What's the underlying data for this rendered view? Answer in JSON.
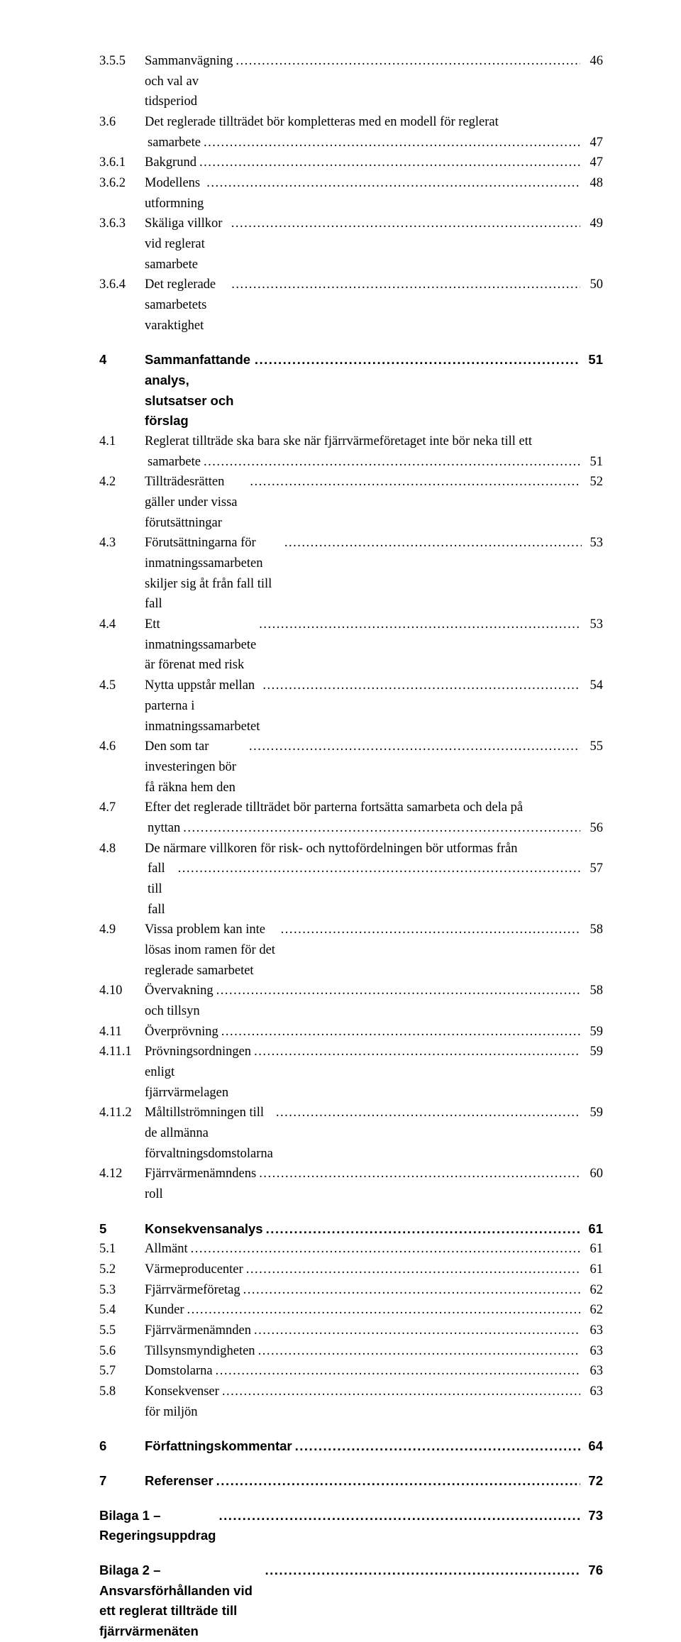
{
  "toc": [
    {
      "num": "3.5.5",
      "title": "Sammanvägning och val av tidsperiod",
      "page": "46",
      "bold": false,
      "indent": false
    },
    {
      "num": "3.6",
      "title": "Det reglerade tillträdet bör kompletteras med en modell för reglerat",
      "page": "",
      "bold": false,
      "indent": false,
      "noleader": true
    },
    {
      "num": "",
      "title": "samarbete",
      "page": "47",
      "bold": false,
      "indent": true
    },
    {
      "num": "3.6.1",
      "title": "Bakgrund",
      "page": "47",
      "bold": false,
      "indent": false
    },
    {
      "num": "3.6.2",
      "title": "Modellens utformning",
      "page": "48",
      "bold": false,
      "indent": false
    },
    {
      "num": "3.6.3",
      "title": "Skäliga villkor vid reglerat samarbete",
      "page": "49",
      "bold": false,
      "indent": false
    },
    {
      "num": "3.6.4",
      "title": "Det reglerade samarbetets varaktighet",
      "page": "50",
      "bold": false,
      "indent": false
    },
    {
      "gap": true
    },
    {
      "num": "4",
      "title": "Sammanfattande analys, slutsatser och förslag",
      "page": "51",
      "bold": true,
      "indent": false,
      "sans": true
    },
    {
      "num": "4.1",
      "title": "Reglerat tillträde ska bara ske när fjärrvärmeföretaget inte bör neka till ett",
      "page": "",
      "bold": false,
      "indent": false,
      "noleader": true
    },
    {
      "num": "",
      "title": "samarbete",
      "page": "51",
      "bold": false,
      "indent": true
    },
    {
      "num": "4.2",
      "title": "Tillträdesrätten gäller under vissa förutsättningar",
      "page": "52",
      "bold": false,
      "indent": false
    },
    {
      "num": "4.3",
      "title": "Förutsättningarna för inmatningssamarbeten skiljer sig åt från fall till fall",
      "page": "53",
      "bold": false,
      "indent": false,
      "tight": true
    },
    {
      "num": "4.4",
      "title": "Ett inmatningssamarbete är förenat med risk",
      "page": "53",
      "bold": false,
      "indent": false
    },
    {
      "num": "4.5",
      "title": "Nytta uppstår mellan parterna i inmatningssamarbetet",
      "page": "54",
      "bold": false,
      "indent": false
    },
    {
      "num": "4.6",
      "title": "Den som tar investeringen bör få räkna hem den",
      "page": "55",
      "bold": false,
      "indent": false
    },
    {
      "num": "4.7",
      "title": "Efter det reglerade tillträdet bör parterna fortsätta samarbeta och dela på",
      "page": "",
      "bold": false,
      "indent": false,
      "noleader": true
    },
    {
      "num": "",
      "title": "nyttan",
      "page": "56",
      "bold": false,
      "indent": true
    },
    {
      "num": "4.8",
      "title": "De närmare villkoren för risk- och nyttofördelningen bör utformas från",
      "page": "",
      "bold": false,
      "indent": false,
      "noleader": true
    },
    {
      "num": "",
      "title": "fall till fall",
      "page": "57",
      "bold": false,
      "indent": true
    },
    {
      "num": "4.9",
      "title": "Vissa problem kan inte lösas inom ramen för det reglerade samarbetet",
      "page": "58",
      "bold": false,
      "indent": false
    },
    {
      "num": "4.10",
      "title": "Övervakning och tillsyn",
      "page": "58",
      "bold": false,
      "indent": false
    },
    {
      "num": "4.11",
      "title": "Överprövning",
      "page": "59",
      "bold": false,
      "indent": false
    },
    {
      "num": "4.11.1",
      "title": "Prövningsordningen enligt fjärrvärmelagen",
      "page": "59",
      "bold": false,
      "indent": false
    },
    {
      "num": "4.11.2",
      "title": "Måltillströmningen till de allmänna förvaltningsdomstolarna",
      "page": "59",
      "bold": false,
      "indent": false
    },
    {
      "num": "4.12",
      "title": "Fjärrvärmenämndens roll",
      "page": "60",
      "bold": false,
      "indent": false
    },
    {
      "gap": true
    },
    {
      "num": "5",
      "title": "Konsekvensanalys",
      "page": "61",
      "bold": true,
      "indent": false,
      "sans": true
    },
    {
      "num": "5.1",
      "title": "Allmänt",
      "page": "61",
      "bold": false,
      "indent": false
    },
    {
      "num": "5.2",
      "title": "Värmeproducenter",
      "page": "61",
      "bold": false,
      "indent": false
    },
    {
      "num": "5.3",
      "title": "Fjärrvärmeföretag",
      "page": "62",
      "bold": false,
      "indent": false
    },
    {
      "num": "5.4",
      "title": "Kunder",
      "page": "62",
      "bold": false,
      "indent": false
    },
    {
      "num": "5.5",
      "title": "Fjärrvärmenämnden",
      "page": "63",
      "bold": false,
      "indent": false
    },
    {
      "num": "5.6",
      "title": "Tillsynsmyndigheten",
      "page": "63",
      "bold": false,
      "indent": false
    },
    {
      "num": "5.7",
      "title": "Domstolarna",
      "page": "63",
      "bold": false,
      "indent": false
    },
    {
      "num": "5.8",
      "title": "Konsekvenser för miljön",
      "page": "63",
      "bold": false,
      "indent": false
    },
    {
      "gap": true
    },
    {
      "num": "6",
      "title": "Författningskommentar",
      "page": "64",
      "bold": true,
      "indent": false,
      "sans": true
    },
    {
      "gap": true
    },
    {
      "num": "7",
      "title": "Referenser",
      "page": "72",
      "bold": true,
      "indent": false,
      "sans": true
    },
    {
      "gap": true
    },
    {
      "num": "Bilaga 1 – Regeringsuppdrag",
      "title": "",
      "page": "73",
      "bold": true,
      "indent": false,
      "sans": true,
      "bilaga": true
    },
    {
      "gap": true
    },
    {
      "num": "Bilaga 2 – Ansvarsförhållanden vid ett reglerat tillträde till fjärrvärmenäten",
      "title": "",
      "page": "76",
      "bold": true,
      "indent": false,
      "sans": true,
      "bilaga": true
    }
  ]
}
